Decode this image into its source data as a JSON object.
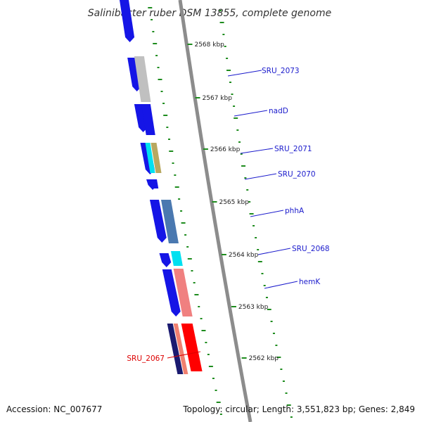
{
  "title": "Salinibacter ruber DSM 13855, complete genome",
  "footer": {
    "accession": "Accession: NC_007677",
    "summary": "Topology: circular; Length: 3,551,823 bp; Genes: 2,849"
  },
  "scale": {
    "ticks": [
      {
        "label": "2568 kbp",
        "kbp": 2568
      },
      {
        "label": "2567 kbp",
        "kbp": 2567
      },
      {
        "label": "2566 kbp",
        "kbp": 2566
      },
      {
        "label": "2565 kbp",
        "kbp": 2565
      },
      {
        "label": "2564 kbp",
        "kbp": 2564
      },
      {
        "label": "2563 kbp",
        "kbp": 2563
      },
      {
        "label": "2562 kbp",
        "kbp": 2562
      }
    ]
  },
  "genes": [
    {
      "name": "SRU_2073",
      "label_color": "#1a1acc",
      "feature_color": "#c0c0c0"
    },
    {
      "name": "nadD",
      "label_color": "#1a1acc",
      "feature_color": "#1515e6"
    },
    {
      "name": "SRU_2071",
      "label_color": "#1a1acc",
      "feature_color": "#b8a860"
    },
    {
      "name": "SRU_2070",
      "label_color": "#1a1acc",
      "feature_color": "#1515e6"
    },
    {
      "name": "phhA",
      "label_color": "#1a1acc",
      "feature_color": "#4a78b0"
    },
    {
      "name": "SRU_2068",
      "label_color": "#1a1acc",
      "feature_color": "#00e0f0"
    },
    {
      "name": "hemK",
      "label_color": "#1a1acc",
      "feature_color": "#f08080"
    },
    {
      "name": "SRU_2067",
      "label_color": "#dd0000",
      "feature_color": "#ff0000"
    }
  ],
  "colors": {
    "backbone": "#8c8c8c",
    "cds": "#1515e6",
    "gc_skew": "#1e8c1e"
  }
}
